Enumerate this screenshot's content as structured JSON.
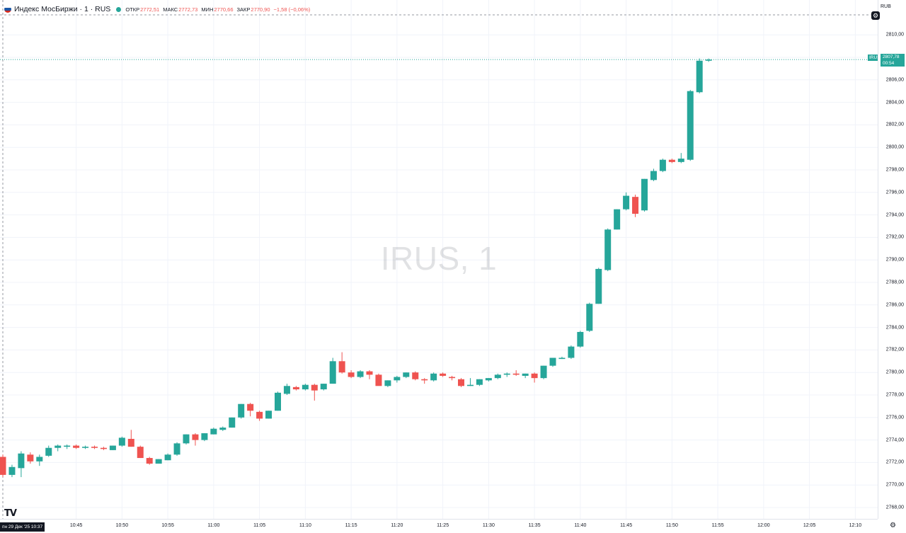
{
  "legend": {
    "title": "Индекс МосБиржи · 1 · RUS",
    "open_label": "ОТКР",
    "open_value": "2772,51",
    "high_label": "МАКС",
    "high_value": "2772,73",
    "low_label": "МИН",
    "low_value": "2770,66",
    "close_label": "ЗАКР",
    "close_value": "2770,90",
    "change": "−1,58 (−0,06%)"
  },
  "watermark": "IRUS, 1",
  "currency": "RUB",
  "settings_icon": "gear-icon",
  "last_price": {
    "symbol": "IRUS",
    "price": "2807,78",
    "countdown": "00:54"
  },
  "date_label": "пн 29 Дек '25   10:37",
  "logo": "TV",
  "colors": {
    "up": "#26a69a",
    "down": "#ef5350",
    "grid": "#f0f3fa",
    "text": "#131722"
  },
  "chart_data": {
    "type": "candlestick",
    "interval": "1 min",
    "y_ticks": [
      "2768,00",
      "2770,00",
      "2772,00",
      "2774,00",
      "2776,00",
      "2778,00",
      "2780,00",
      "2782,00",
      "2784,00",
      "2786,00",
      "2788,00",
      "2790,00",
      "2792,00",
      "2794,00",
      "2796,00",
      "2798,00",
      "2800,00",
      "2802,00",
      "2804,00",
      "2806,00",
      "2808,00",
      "2810,00"
    ],
    "ylim": [
      2766.5,
      2811.5
    ],
    "x_ticks": [
      "10:45",
      "10:50",
      "10:55",
      "11:00",
      "11:05",
      "11:10",
      "11:15",
      "11:20",
      "11:25",
      "11:30",
      "11:35",
      "11:40",
      "11:45",
      "11:50",
      "11:55",
      "12:00",
      "12:05",
      "12:10"
    ],
    "candles": [
      {
        "t": "10:37",
        "o": 2772.5,
        "h": 2772.7,
        "l": 2770.7,
        "c": 2770.9
      },
      {
        "t": "10:38",
        "o": 2770.9,
        "h": 2771.8,
        "l": 2770.7,
        "c": 2771.6
      },
      {
        "t": "10:39",
        "o": 2771.5,
        "h": 2773.0,
        "l": 2770.7,
        "c": 2772.8
      },
      {
        "t": "10:40",
        "o": 2772.7,
        "h": 2772.9,
        "l": 2771.9,
        "c": 2772.1
      },
      {
        "t": "10:41",
        "o": 2772.1,
        "h": 2772.7,
        "l": 2771.7,
        "c": 2772.5
      },
      {
        "t": "10:42",
        "o": 2772.6,
        "h": 2773.5,
        "l": 2772.5,
        "c": 2773.3
      },
      {
        "t": "10:43",
        "o": 2773.3,
        "h": 2773.6,
        "l": 2773.0,
        "c": 2773.5
      },
      {
        "t": "10:44",
        "o": 2773.4,
        "h": 2773.6,
        "l": 2773.2,
        "c": 2773.5
      },
      {
        "t": "10:45",
        "o": 2773.5,
        "h": 2773.6,
        "l": 2773.2,
        "c": 2773.3
      },
      {
        "t": "10:46",
        "o": 2773.3,
        "h": 2773.5,
        "l": 2773.2,
        "c": 2773.4
      },
      {
        "t": "10:47",
        "o": 2773.4,
        "h": 2773.5,
        "l": 2773.2,
        "c": 2773.3
      },
      {
        "t": "10:48",
        "o": 2773.3,
        "h": 2773.4,
        "l": 2773.1,
        "c": 2773.2
      },
      {
        "t": "10:49",
        "o": 2773.1,
        "h": 2773.5,
        "l": 2773.1,
        "c": 2773.5
      },
      {
        "t": "10:50",
        "o": 2773.5,
        "h": 2774.3,
        "l": 2773.4,
        "c": 2774.2
      },
      {
        "t": "10:51",
        "o": 2774.1,
        "h": 2774.9,
        "l": 2773.4,
        "c": 2773.4
      },
      {
        "t": "10:52",
        "o": 2773.4,
        "h": 2773.5,
        "l": 2772.4,
        "c": 2772.4
      },
      {
        "t": "10:53",
        "o": 2772.4,
        "h": 2772.5,
        "l": 2771.8,
        "c": 2771.9
      },
      {
        "t": "10:54",
        "o": 2771.9,
        "h": 2772.3,
        "l": 2771.9,
        "c": 2772.3
      },
      {
        "t": "10:55",
        "o": 2772.2,
        "h": 2772.8,
        "l": 2772.2,
        "c": 2772.7
      },
      {
        "t": "10:56",
        "o": 2772.7,
        "h": 2773.8,
        "l": 2772.6,
        "c": 2773.7
      },
      {
        "t": "10:57",
        "o": 2773.7,
        "h": 2774.5,
        "l": 2773.6,
        "c": 2774.5
      },
      {
        "t": "10:58",
        "o": 2774.5,
        "h": 2774.6,
        "l": 2773.5,
        "c": 2774.0
      },
      {
        "t": "10:59",
        "o": 2774.0,
        "h": 2774.6,
        "l": 2773.9,
        "c": 2774.6
      },
      {
        "t": "11:00",
        "o": 2774.5,
        "h": 2775.1,
        "l": 2774.5,
        "c": 2775.0
      },
      {
        "t": "11:01",
        "o": 2774.9,
        "h": 2775.2,
        "l": 2774.8,
        "c": 2775.1
      },
      {
        "t": "11:02",
        "o": 2775.1,
        "h": 2776.0,
        "l": 2775.1,
        "c": 2776.0
      },
      {
        "t": "11:03",
        "o": 2776.0,
        "h": 2777.2,
        "l": 2775.9,
        "c": 2777.2
      },
      {
        "t": "11:04",
        "o": 2777.2,
        "h": 2777.3,
        "l": 2776.1,
        "c": 2776.6
      },
      {
        "t": "11:05",
        "o": 2776.5,
        "h": 2776.6,
        "l": 2775.7,
        "c": 2775.9
      },
      {
        "t": "11:06",
        "o": 2775.9,
        "h": 2776.6,
        "l": 2775.9,
        "c": 2776.6
      },
      {
        "t": "11:07",
        "o": 2776.6,
        "h": 2778.3,
        "l": 2776.6,
        "c": 2778.2
      },
      {
        "t": "11:08",
        "o": 2778.1,
        "h": 2779.0,
        "l": 2778.0,
        "c": 2778.8
      },
      {
        "t": "11:09",
        "o": 2778.7,
        "h": 2778.8,
        "l": 2778.4,
        "c": 2778.5
      },
      {
        "t": "11:10",
        "o": 2778.5,
        "h": 2779.0,
        "l": 2778.4,
        "c": 2778.9
      },
      {
        "t": "11:11",
        "o": 2778.9,
        "h": 2779.0,
        "l": 2777.5,
        "c": 2778.4
      },
      {
        "t": "11:12",
        "o": 2778.5,
        "h": 2779.0,
        "l": 2778.4,
        "c": 2779.0
      },
      {
        "t": "11:13",
        "o": 2779.0,
        "h": 2781.3,
        "l": 2779.0,
        "c": 2781.0
      },
      {
        "t": "11:14",
        "o": 2781.0,
        "h": 2781.8,
        "l": 2779.9,
        "c": 2780.0
      },
      {
        "t": "11:15",
        "o": 2780.0,
        "h": 2780.2,
        "l": 2779.5,
        "c": 2779.6
      },
      {
        "t": "11:16",
        "o": 2779.6,
        "h": 2780.2,
        "l": 2779.5,
        "c": 2780.1
      },
      {
        "t": "11:17",
        "o": 2780.1,
        "h": 2780.2,
        "l": 2779.4,
        "c": 2779.8
      },
      {
        "t": "11:18",
        "o": 2779.8,
        "h": 2779.9,
        "l": 2778.9,
        "c": 2778.8
      },
      {
        "t": "11:19",
        "o": 2778.8,
        "h": 2779.3,
        "l": 2778.7,
        "c": 2779.3
      },
      {
        "t": "11:20",
        "o": 2779.3,
        "h": 2779.7,
        "l": 2779.1,
        "c": 2779.6
      },
      {
        "t": "11:21",
        "o": 2779.6,
        "h": 2780.0,
        "l": 2779.5,
        "c": 2780.0
      },
      {
        "t": "11:22",
        "o": 2780.0,
        "h": 2780.1,
        "l": 2779.3,
        "c": 2779.4
      },
      {
        "t": "11:23",
        "o": 2779.4,
        "h": 2779.5,
        "l": 2779.0,
        "c": 2779.3
      },
      {
        "t": "11:24",
        "o": 2779.3,
        "h": 2780.0,
        "l": 2779.2,
        "c": 2779.9
      },
      {
        "t": "11:25",
        "o": 2779.9,
        "h": 2780.0,
        "l": 2779.6,
        "c": 2779.7
      },
      {
        "t": "11:26",
        "o": 2779.6,
        "h": 2779.7,
        "l": 2779.3,
        "c": 2779.5
      },
      {
        "t": "11:27",
        "o": 2779.4,
        "h": 2779.5,
        "l": 2778.7,
        "c": 2778.8
      },
      {
        "t": "11:28",
        "o": 2778.8,
        "h": 2779.5,
        "l": 2778.8,
        "c": 2778.9
      },
      {
        "t": "11:29",
        "o": 2778.9,
        "h": 2779.4,
        "l": 2778.8,
        "c": 2779.4
      },
      {
        "t": "11:30",
        "o": 2779.3,
        "h": 2779.5,
        "l": 2779.2,
        "c": 2779.5
      },
      {
        "t": "11:31",
        "o": 2779.5,
        "h": 2779.9,
        "l": 2779.4,
        "c": 2779.8
      },
      {
        "t": "11:32",
        "o": 2779.8,
        "h": 2780.0,
        "l": 2779.6,
        "c": 2779.9
      },
      {
        "t": "11:33",
        "o": 2779.9,
        "h": 2780.2,
        "l": 2779.7,
        "c": 2779.8
      },
      {
        "t": "11:34",
        "o": 2779.7,
        "h": 2779.9,
        "l": 2779.5,
        "c": 2779.9
      },
      {
        "t": "11:35",
        "o": 2779.9,
        "h": 2780.0,
        "l": 2779.1,
        "c": 2779.5
      },
      {
        "t": "11:36",
        "o": 2779.5,
        "h": 2780.6,
        "l": 2779.4,
        "c": 2780.6
      },
      {
        "t": "11:37",
        "o": 2780.6,
        "h": 2781.3,
        "l": 2780.5,
        "c": 2781.3
      },
      {
        "t": "11:38",
        "o": 2781.2,
        "h": 2781.4,
        "l": 2781.2,
        "c": 2781.3
      },
      {
        "t": "11:39",
        "o": 2781.3,
        "h": 2782.4,
        "l": 2781.2,
        "c": 2782.3
      },
      {
        "t": "11:40",
        "o": 2782.3,
        "h": 2783.7,
        "l": 2782.2,
        "c": 2783.6
      },
      {
        "t": "11:41",
        "o": 2783.7,
        "h": 2786.2,
        "l": 2783.6,
        "c": 2786.1
      },
      {
        "t": "11:42",
        "o": 2786.1,
        "h": 2789.3,
        "l": 2786.1,
        "c": 2789.2
      },
      {
        "t": "11:43",
        "o": 2789.1,
        "h": 2792.8,
        "l": 2789.0,
        "c": 2792.7
      },
      {
        "t": "11:44",
        "o": 2792.7,
        "h": 2794.5,
        "l": 2792.7,
        "c": 2794.5
      },
      {
        "t": "11:45",
        "o": 2794.5,
        "h": 2796.0,
        "l": 2794.4,
        "c": 2795.7
      },
      {
        "t": "11:46",
        "o": 2795.6,
        "h": 2795.8,
        "l": 2793.8,
        "c": 2794.1
      },
      {
        "t": "11:47",
        "o": 2794.4,
        "h": 2797.2,
        "l": 2794.3,
        "c": 2797.2
      },
      {
        "t": "11:48",
        "o": 2797.1,
        "h": 2798.1,
        "l": 2797.0,
        "c": 2797.9
      },
      {
        "t": "11:49",
        "o": 2797.9,
        "h": 2799.0,
        "l": 2797.8,
        "c": 2798.9
      },
      {
        "t": "11:50",
        "o": 2798.9,
        "h": 2799.0,
        "l": 2798.6,
        "c": 2798.7
      },
      {
        "t": "11:51",
        "o": 2798.7,
        "h": 2799.5,
        "l": 2798.6,
        "c": 2799.0
      },
      {
        "t": "11:52",
        "o": 2798.9,
        "h": 2805.1,
        "l": 2798.8,
        "c": 2805.0
      },
      {
        "t": "11:53",
        "o": 2804.9,
        "h": 2807.9,
        "l": 2804.8,
        "c": 2807.7
      },
      {
        "t": "11:54",
        "o": 2807.7,
        "h": 2807.9,
        "l": 2807.6,
        "c": 2807.8
      }
    ]
  }
}
